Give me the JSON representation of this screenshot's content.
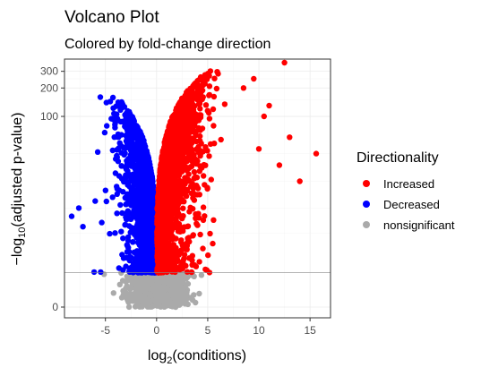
{
  "chart_data": {
    "type": "scatter",
    "title": "Volcano Plot",
    "subtitle": "Colored by fold-change direction",
    "xlabel_base": "log",
    "xlabel_sub": "2",
    "xlabel_rest": "(conditions)",
    "ylabel_prefix": "−log",
    "ylabel_sub": "10",
    "ylabel_rest": "(adjusted p-value)",
    "xlim": [
      -9,
      17
    ],
    "x_ticks": [
      -5,
      0,
      5,
      10,
      15
    ],
    "x_tick_labels": [
      "-5",
      "0",
      "5",
      "10",
      "15"
    ],
    "y_scale": "pseudo-log",
    "y_ticks": [
      0,
      100,
      200,
      300
    ],
    "y_tick_labels": [
      "0",
      "100",
      "200",
      "300"
    ],
    "significance_threshold_y": 1.3,
    "grid": true,
    "legend_position": "right",
    "legend_title": "Directionality",
    "series": [
      {
        "name": "Increased",
        "color": "#ff0000",
        "x_range": [
          0,
          15.6
        ],
        "y_range": [
          1.3,
          370
        ]
      },
      {
        "name": "Decreased",
        "color": "#0000ff",
        "x_range": [
          -8.3,
          0
        ],
        "y_range": [
          1.3,
          160
        ]
      },
      {
        "name": "nonsignificant",
        "color": "#aaaaaa",
        "x_range": [
          -4.5,
          5.5
        ],
        "y_range": [
          0,
          1.3
        ]
      }
    ]
  }
}
